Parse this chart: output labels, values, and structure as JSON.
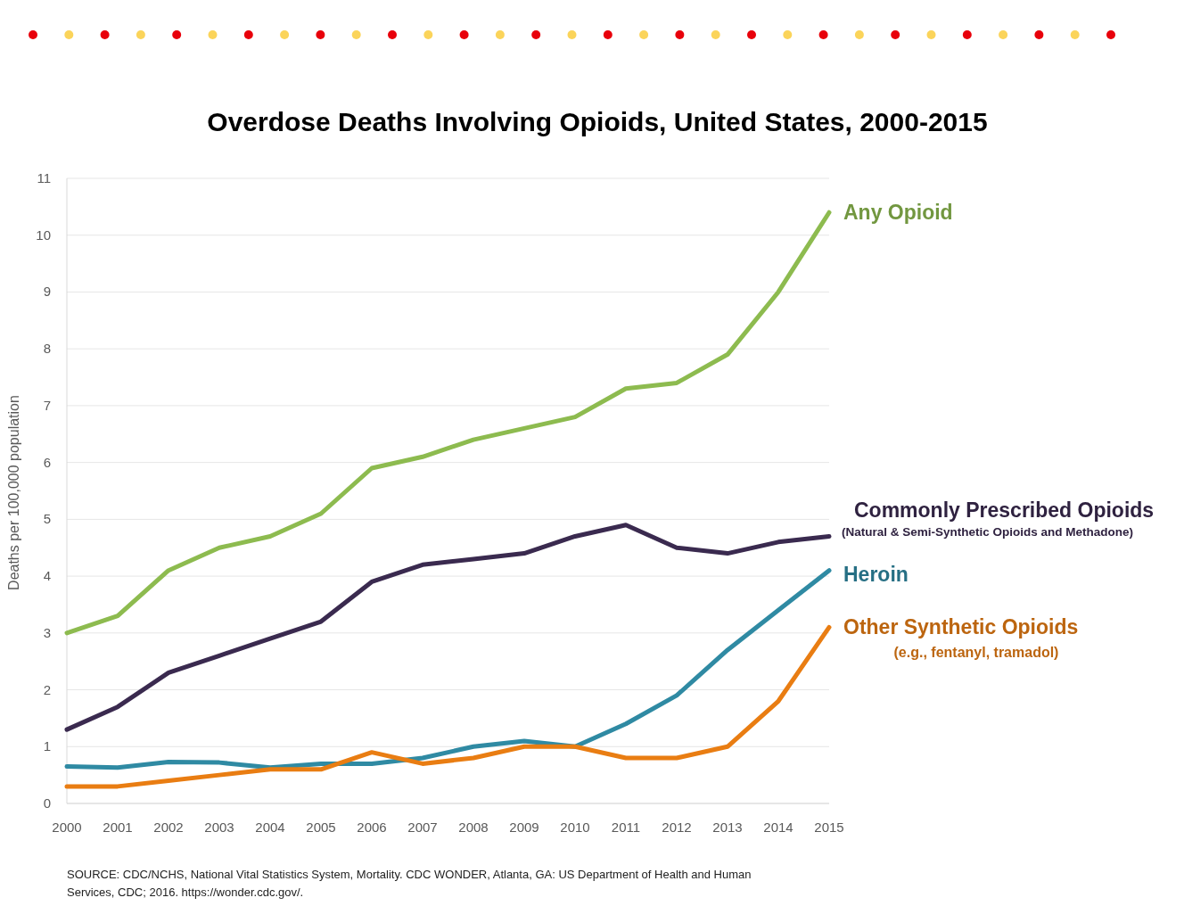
{
  "chart_data": {
    "type": "line",
    "title": "Overdose Deaths Involving Opioids, United States, 2000-2015",
    "ylabel": "Deaths per 100,000 population",
    "x": [
      2000,
      2001,
      2002,
      2003,
      2004,
      2005,
      2006,
      2007,
      2008,
      2009,
      2010,
      2011,
      2012,
      2013,
      2014,
      2015
    ],
    "xlim": [
      2000,
      2015
    ],
    "xticks": [
      2000,
      2001,
      2002,
      2003,
      2004,
      2005,
      2006,
      2007,
      2008,
      2009,
      2010,
      2011,
      2012,
      2013,
      2014,
      2015
    ],
    "ylim": [
      0,
      11
    ],
    "yticks": [
      0,
      1,
      2,
      3,
      4,
      5,
      6,
      7,
      8,
      9,
      10,
      11
    ],
    "grid": "y",
    "marker": "none",
    "line_style": "solid",
    "series": [
      {
        "name": "Any Opioid",
        "color": "#8dbb4f",
        "values": [
          3.0,
          3.3,
          4.1,
          4.5,
          4.7,
          5.1,
          5.9,
          6.1,
          6.4,
          6.6,
          6.8,
          7.3,
          7.4,
          7.9,
          9.0,
          10.4
        ]
      },
      {
        "name": "Commonly Prescribed Opioids",
        "color": "#3a2a4f",
        "values": [
          1.3,
          1.7,
          2.3,
          2.6,
          2.9,
          3.2,
          3.9,
          4.2,
          4.3,
          4.4,
          4.7,
          4.9,
          4.5,
          4.4,
          4.6,
          4.7
        ]
      },
      {
        "name": "Heroin",
        "color": "#2f8aa3",
        "values": [
          0.65,
          0.63,
          0.73,
          0.72,
          0.63,
          0.7,
          0.7,
          0.8,
          1.0,
          1.1,
          1.0,
          1.4,
          1.9,
          2.7,
          3.4,
          4.1
        ]
      },
      {
        "name": "Other Synthetic Opioids",
        "color": "#e97d12",
        "values": [
          0.3,
          0.3,
          0.4,
          0.5,
          0.6,
          0.6,
          0.9,
          0.7,
          0.8,
          1.0,
          1.0,
          0.8,
          0.8,
          1.0,
          1.8,
          3.1
        ]
      }
    ],
    "annotations": [
      "(Natural & Semi-Synthetic Opioids and Methadone)",
      "(e.g., fentanyl, tramadol)",
      "SOURCE: CDC/NCHS, National Vital Statistics System, Mortality. CDC WONDER, Atlanta, GA: US Department of Health and Human Services, CDC; 2016. https://wonder.cdc.gov/."
    ]
  }
}
